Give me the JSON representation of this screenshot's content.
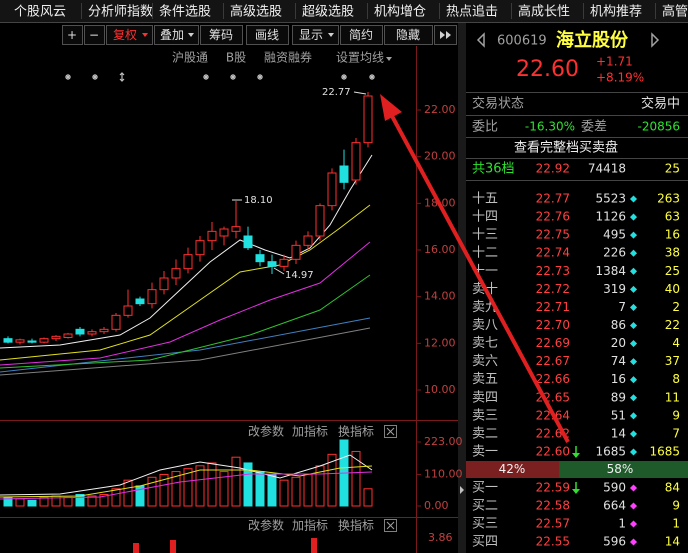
{
  "menu": [
    "个股风云",
    "分析师指数",
    "条件选股",
    "高级选股",
    "超级选股",
    "机构增仓",
    "热点追击",
    "高成长性",
    "机构推荐",
    "高管"
  ],
  "toolbar": [
    "+",
    "−",
    "复权",
    "叠加",
    "筹码",
    "画线",
    "显示",
    "简约",
    "隐藏"
  ],
  "subbar": [
    "沪股通",
    "B股",
    "融资融券",
    "设置均线"
  ],
  "kline": {
    "price_axis": [
      {
        "value": 22,
        "label": "22.00"
      },
      {
        "value": 20,
        "label": "20.00"
      },
      {
        "value": 18,
        "label": "18.00"
      },
      {
        "value": 16,
        "label": "16.00"
      },
      {
        "value": 14,
        "label": "14.00"
      },
      {
        "value": 12,
        "label": "12.00"
      },
      {
        "value": 10,
        "label": "10.00"
      }
    ],
    "candles": [
      [
        12.2,
        12.3,
        12.0,
        12.05
      ],
      [
        12.05,
        12.2,
        11.95,
        12.15
      ],
      [
        12.1,
        12.2,
        12.0,
        12.05
      ],
      [
        12.05,
        12.25,
        12.0,
        12.2
      ],
      [
        12.2,
        12.35,
        12.1,
        12.3
      ],
      [
        12.25,
        12.45,
        12.2,
        12.4
      ],
      [
        12.6,
        12.7,
        12.3,
        12.4
      ],
      [
        12.4,
        12.6,
        12.3,
        12.5
      ],
      [
        12.5,
        12.7,
        12.4,
        12.6
      ],
      [
        12.6,
        13.3,
        12.5,
        13.2
      ],
      [
        13.2,
        14.3,
        13.1,
        13.6
      ],
      [
        13.9,
        14.0,
        13.6,
        13.7
      ],
      [
        13.7,
        14.6,
        13.5,
        14.3
      ],
      [
        14.3,
        15.1,
        14.1,
        14.8
      ],
      [
        14.8,
        15.6,
        14.5,
        15.2
      ],
      [
        15.2,
        16.1,
        15.0,
        15.8
      ],
      [
        15.8,
        16.6,
        15.5,
        16.4
      ],
      [
        16.4,
        17.2,
        16.0,
        16.8
      ],
      [
        16.6,
        17.0,
        16.2,
        16.9
      ],
      [
        16.8,
        18.1,
        16.5,
        17.0
      ],
      [
        16.6,
        17.0,
        16.0,
        16.1
      ],
      [
        15.8,
        16.0,
        15.3,
        15.5
      ],
      [
        15.5,
        15.8,
        14.97,
        15.3
      ],
      [
        15.3,
        15.8,
        15.1,
        15.6
      ],
      [
        15.6,
        16.4,
        15.4,
        16.2
      ],
      [
        16.2,
        16.8,
        16.0,
        16.6
      ],
      [
        16.6,
        18.0,
        16.4,
        17.9
      ],
      [
        17.9,
        19.5,
        17.7,
        19.3
      ],
      [
        19.6,
        20.3,
        18.6,
        18.9
      ],
      [
        19.0,
        20.8,
        18.8,
        20.6
      ],
      [
        20.6,
        22.77,
        20.4,
        22.6
      ]
    ],
    "annotations": {
      "high": "22.77",
      "peak": "18.10",
      "low": "14.97"
    }
  },
  "volume_panel": {
    "buttons": [
      "改参数",
      "加指标",
      "换指标"
    ],
    "axis": [
      {
        "value": 223,
        "label": "223.00"
      },
      {
        "value": 110,
        "label": "110.00"
      },
      {
        "value": 0,
        "label": "0.00"
      }
    ],
    "volumes": [
      30,
      25,
      20,
      30,
      35,
      30,
      40,
      35,
      40,
      60,
      90,
      70,
      100,
      110,
      120,
      130,
      140,
      150,
      120,
      170,
      150,
      120,
      110,
      90,
      100,
      110,
      140,
      180,
      230,
      190,
      60
    ]
  },
  "macd_panel": {
    "buttons": [
      "改参数",
      "加指标",
      "换指标"
    ],
    "axis_label": "3.86"
  },
  "quote": {
    "code": "600619",
    "name": "海立股份",
    "price": "22.60",
    "change": "+1.71",
    "change_pct": "+8.19%"
  },
  "status": {
    "label": "交易状态",
    "value": "交易中"
  },
  "ratio": {
    "label": "委比",
    "value": "-16.30%",
    "diff_label": "委差",
    "diff_value": "-20856"
  },
  "full_book_link": "查看完整档买卖盘",
  "summary": {
    "label": "共36档",
    "price": "22.92",
    "volume": "74418",
    "count": "25"
  },
  "sell_levels": [
    {
      "label": "十五",
      "price": "22.77",
      "volume": "5523",
      "count": "263"
    },
    {
      "label": "十四",
      "price": "22.76",
      "volume": "1126",
      "count": "63"
    },
    {
      "label": "十三",
      "price": "22.75",
      "volume": "495",
      "count": "16"
    },
    {
      "label": "十二",
      "price": "22.74",
      "volume": "226",
      "count": "38"
    },
    {
      "label": "十一",
      "price": "22.73",
      "volume": "1384",
      "count": "25"
    },
    {
      "label": "卖十",
      "price": "22.72",
      "volume": "319",
      "count": "40"
    },
    {
      "label": "卖九",
      "price": "22.71",
      "volume": "7",
      "count": "2"
    },
    {
      "label": "卖八",
      "price": "22.70",
      "volume": "86",
      "count": "22"
    },
    {
      "label": "卖七",
      "price": "22.69",
      "volume": "20",
      "count": "4"
    },
    {
      "label": "卖六",
      "price": "22.67",
      "volume": "74",
      "count": "37"
    },
    {
      "label": "卖五",
      "price": "22.66",
      "volume": "16",
      "count": "8"
    },
    {
      "label": "卖四",
      "price": "22.65",
      "volume": "89",
      "count": "11"
    },
    {
      "label": "卖三",
      "price": "22.64",
      "volume": "51",
      "count": "9"
    },
    {
      "label": "卖二",
      "price": "22.62",
      "volume": "14",
      "count": "7"
    },
    {
      "label": "卖一",
      "price": "22.60",
      "volume": "1685",
      "count": "1685"
    }
  ],
  "balance": {
    "sell": "42%",
    "buy": "58%"
  },
  "buy_levels": [
    {
      "label": "买一",
      "price": "22.59",
      "volume": "590",
      "count": "84"
    },
    {
      "label": "买二",
      "price": "22.58",
      "volume": "664",
      "count": "9"
    },
    {
      "label": "买三",
      "price": "22.57",
      "volume": "1",
      "count": "1"
    },
    {
      "label": "买四",
      "price": "22.55",
      "volume": "596",
      "count": "14"
    }
  ]
}
